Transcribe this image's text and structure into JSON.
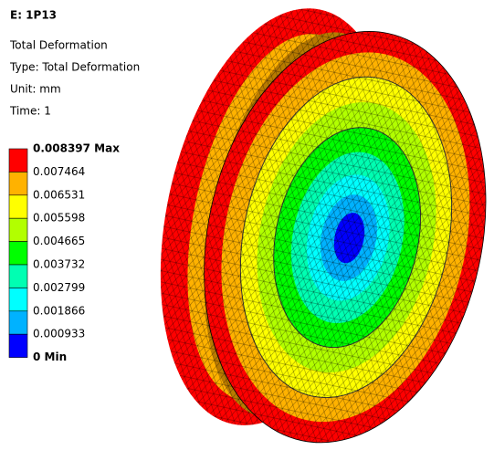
{
  "header": {
    "title": "E: 1P13",
    "lines": [
      "Total Deformation",
      "Type: Total Deformation",
      "Unit: mm",
      "Time: 1"
    ]
  },
  "legend": {
    "labels": [
      "0.008397 Max",
      "0.007464",
      "0.006531",
      "0.005598",
      "0.004665",
      "0.003732",
      "0.002799",
      "0.001866",
      "0.000933",
      "0 Min"
    ],
    "colors": [
      "#ff0000",
      "#ffb200",
      "#ffff00",
      "#b2ff00",
      "#00ff00",
      "#00ffb2",
      "#00ffff",
      "#00b2ff",
      "#0000ff"
    ]
  }
}
